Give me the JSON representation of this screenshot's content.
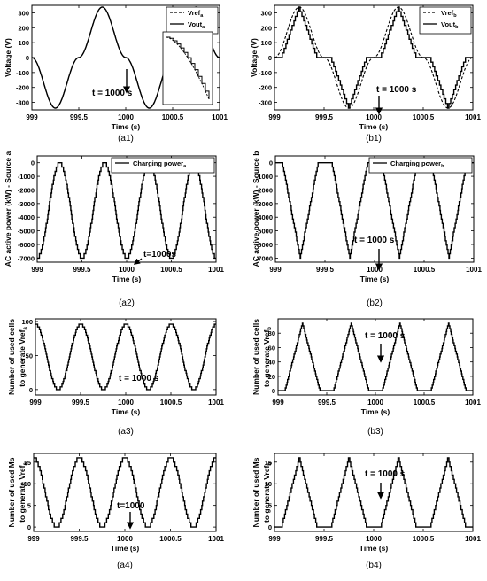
{
  "chart_data": [
    {
      "id": "a1",
      "type": "line",
      "caption": "(a1)",
      "xlabel": "Time (s)",
      "ylabel": "Voltage (V)",
      "xlim": [
        999,
        1001
      ],
      "ylim": [
        -350,
        350
      ],
      "xticks": [
        999,
        999.5,
        1000,
        1000.5,
        1001
      ],
      "xtick_labels": [
        "999",
        "999.5",
        "1000",
        "1000.5",
        "1001"
      ],
      "yticks": [
        -300,
        -200,
        -100,
        0,
        100,
        200,
        300
      ],
      "ytick_labels": [
        "-300",
        "-200",
        "-100",
        "0",
        "100",
        "200",
        "300"
      ],
      "legend_position": "top-right",
      "series": [
        {
          "name": "Vref",
          "sub": "a",
          "style": "dashed",
          "values": [
            {
              "x": 999,
              "y": 0
            },
            {
              "x": 999.25,
              "y": -338
            },
            {
              "x": 999.5,
              "y": 0
            },
            {
              "x": 999.75,
              "y": 338
            },
            {
              "x": 1000,
              "y": 0
            },
            {
              "x": 1000.25,
              "y": -338
            },
            {
              "x": 1000.5,
              "y": 0
            },
            {
              "x": 1000.75,
              "y": 338
            },
            {
              "x": 1001,
              "y": 0
            }
          ]
        },
        {
          "name": "Vout",
          "sub": "a",
          "style": "solid",
          "values": [
            {
              "x": 999,
              "y": 0
            },
            {
              "x": 999.25,
              "y": -338
            },
            {
              "x": 999.5,
              "y": 0
            },
            {
              "x": 999.75,
              "y": 338
            },
            {
              "x": 1000,
              "y": 0
            },
            {
              "x": 1000.25,
              "y": -338
            },
            {
              "x": 1000.5,
              "y": 0
            },
            {
              "x": 1000.75,
              "y": 338
            },
            {
              "x": 1001,
              "y": 0
            }
          ]
        }
      ],
      "annotations": [
        {
          "text": "t = 1000 s",
          "x": 1000
        }
      ],
      "inset": true
    },
    {
      "id": "b1",
      "type": "line",
      "caption": "(b1)",
      "xlabel": "Time (s)",
      "ylabel": "Voltage (V)",
      "xlim": [
        999,
        1001
      ],
      "ylim": [
        -350,
        350
      ],
      "xticks": [
        999,
        999.5,
        1000,
        1000.5,
        1001
      ],
      "xtick_labels": [
        "999",
        "999.5",
        "1000",
        "1000.5",
        "1001"
      ],
      "yticks": [
        -300,
        -200,
        -100,
        0,
        100,
        200,
        300
      ],
      "ytick_labels": [
        "-300",
        "-200",
        "-100",
        "0",
        "100",
        "200",
        "300"
      ],
      "legend_position": "top-right",
      "series": [
        {
          "name": "Vref",
          "sub": "b",
          "style": "dashed",
          "values": [
            {
              "x": 999,
              "y": 0
            },
            {
              "x": 999.25,
              "y": 338
            },
            {
              "x": 999.5,
              "y": 0
            },
            {
              "x": 999.75,
              "y": -338
            },
            {
              "x": 1000,
              "y": 0
            },
            {
              "x": 1000.25,
              "y": 338
            },
            {
              "x": 1000.5,
              "y": 0
            },
            {
              "x": 1000.75,
              "y": -338
            },
            {
              "x": 1001,
              "y": 0
            }
          ]
        },
        {
          "name": "Vout",
          "sub": "b",
          "style": "solid",
          "values": [
            {
              "x": 999,
              "y": 0
            },
            {
              "x": 999.07,
              "y": 0
            },
            {
              "x": 999.25,
              "y": 338
            },
            {
              "x": 999.43,
              "y": 0
            },
            {
              "x": 999.57,
              "y": 0
            },
            {
              "x": 999.75,
              "y": -338
            },
            {
              "x": 999.93,
              "y": 0
            },
            {
              "x": 1000.07,
              "y": 0
            },
            {
              "x": 1000.25,
              "y": 338
            },
            {
              "x": 1000.43,
              "y": 0
            },
            {
              "x": 1000.57,
              "y": 0
            },
            {
              "x": 1000.75,
              "y": -338
            },
            {
              "x": 1000.93,
              "y": 0
            },
            {
              "x": 1001,
              "y": 0
            }
          ]
        }
      ],
      "annotations": [
        {
          "text": "t = 1000 s",
          "x": 1000
        }
      ]
    },
    {
      "id": "a2",
      "type": "line",
      "caption": "(a2)",
      "xlabel": "Time (s)",
      "ylabel": "AC active power (kW) - Source a",
      "xlim": [
        999,
        1001
      ],
      "ylim": [
        -7300,
        500
      ],
      "xticks": [
        999,
        999.5,
        1000,
        1000.5,
        1001
      ],
      "xtick_labels": [
        "999",
        "999.5",
        "1000",
        "1000.5",
        "1001"
      ],
      "yticks": [
        -7000,
        -6000,
        -5000,
        -4000,
        -3000,
        -2000,
        -1000,
        0
      ],
      "ytick_labels": [
        "-7000",
        "-6000",
        "-5000",
        "-4000",
        "-3000",
        "-2000",
        "-1000",
        "0"
      ],
      "legend_position": "top-right",
      "series": [
        {
          "name": "Charging power",
          "sub": "a",
          "style": "solid",
          "values": [
            {
              "x": 999,
              "y": -7000
            },
            {
              "x": 999.25,
              "y": 0
            },
            {
              "x": 999.5,
              "y": -7000
            },
            {
              "x": 999.75,
              "y": 0
            },
            {
              "x": 1000,
              "y": -7000
            },
            {
              "x": 1000.25,
              "y": 0
            },
            {
              "x": 1000.5,
              "y": -7000
            },
            {
              "x": 1000.75,
              "y": 0
            },
            {
              "x": 1001,
              "y": -7000
            }
          ]
        }
      ],
      "annotations": [
        {
          "text": "t=1000s",
          "x": 1000
        }
      ]
    },
    {
      "id": "b2",
      "type": "line",
      "caption": "(b2)",
      "xlabel": "Time (s)",
      "ylabel": "AC active power (kW) - Source b",
      "xlim": [
        999,
        1001
      ],
      "ylim": [
        -7300,
        500
      ],
      "xticks": [
        999,
        999.5,
        1000,
        1000.5,
        1001
      ],
      "xtick_labels": [
        "999",
        "999.5",
        "1000",
        "1000.5",
        "1001"
      ],
      "yticks": [
        -7000,
        -6000,
        -5000,
        -4000,
        -3000,
        -2000,
        -1000,
        0
      ],
      "ytick_labels": [
        "-7000",
        "-6000",
        "-5000",
        "-4000",
        "-3000",
        "-2000",
        "-1000",
        "0"
      ],
      "legend_position": "top-right",
      "series": [
        {
          "name": "Charging power",
          "sub": "b",
          "style": "solid",
          "values": [
            {
              "x": 999,
              "y": 0
            },
            {
              "x": 999.07,
              "y": 0
            },
            {
              "x": 999.25,
              "y": -7000
            },
            {
              "x": 999.43,
              "y": 0
            },
            {
              "x": 999.57,
              "y": 0
            },
            {
              "x": 999.75,
              "y": -7000
            },
            {
              "x": 999.93,
              "y": 0
            },
            {
              "x": 1000.07,
              "y": 0
            },
            {
              "x": 1000.25,
              "y": -7000
            },
            {
              "x": 1000.43,
              "y": 0
            },
            {
              "x": 1000.57,
              "y": 0
            },
            {
              "x": 1000.75,
              "y": -7000
            },
            {
              "x": 1000.93,
              "y": 0
            },
            {
              "x": 1001,
              "y": 0
            }
          ]
        }
      ],
      "annotations": [
        {
          "text": "t = 1000 s",
          "x": 1000
        }
      ]
    },
    {
      "id": "a3",
      "type": "line",
      "caption": "(a3)",
      "xlabel": "Time (s)",
      "ylabel": [
        "Number of used cells",
        "to generate Vref"
      ],
      "ylabel_sub": "a",
      "xlim": [
        999,
        1001
      ],
      "ylim": [
        -8,
        104
      ],
      "xticks": [
        999,
        999.5,
        1000,
        1000.5,
        1001
      ],
      "xtick_labels": [
        "999",
        "999.5",
        "1000",
        "1000.5",
        "1001"
      ],
      "yticks": [
        0,
        50,
        100
      ],
      "ytick_labels": [
        "0",
        "50",
        "100"
      ],
      "series": [
        {
          "name": "",
          "style": "solid",
          "values": [
            {
              "x": 999,
              "y": 96
            },
            {
              "x": 999.25,
              "y": 0
            },
            {
              "x": 999.5,
              "y": 96
            },
            {
              "x": 999.75,
              "y": 0
            },
            {
              "x": 1000,
              "y": 96
            },
            {
              "x": 1000.25,
              "y": 0
            },
            {
              "x": 1000.5,
              "y": 96
            },
            {
              "x": 1000.75,
              "y": 0
            },
            {
              "x": 1001,
              "y": 96
            }
          ]
        }
      ],
      "annotations": [
        {
          "text": "t = 1000 s",
          "x": 1000
        }
      ]
    },
    {
      "id": "b3",
      "type": "line",
      "caption": "(b3)",
      "xlabel": "Time (s)",
      "ylabel": [
        "Number of used cells",
        "to generate Vref"
      ],
      "ylabel_sub": "b",
      "xlim": [
        999,
        1001
      ],
      "ylim": [
        -6,
        100
      ],
      "xticks": [
        999,
        999.5,
        1000,
        1000.5,
        1001
      ],
      "xtick_labels": [
        "999",
        "999.5",
        "1000",
        "1000.5",
        "1001"
      ],
      "yticks": [
        0,
        20,
        40,
        60,
        80
      ],
      "ytick_labels": [
        "0",
        "20",
        "40",
        "60",
        "80"
      ],
      "series": [
        {
          "name": "",
          "style": "solid",
          "values": [
            {
              "x": 999,
              "y": 0
            },
            {
              "x": 999.07,
              "y": 0
            },
            {
              "x": 999.25,
              "y": 94
            },
            {
              "x": 999.43,
              "y": 0
            },
            {
              "x": 999.57,
              "y": 0
            },
            {
              "x": 999.75,
              "y": 94
            },
            {
              "x": 999.93,
              "y": 0
            },
            {
              "x": 1000.07,
              "y": 0
            },
            {
              "x": 1000.25,
              "y": 94
            },
            {
              "x": 1000.43,
              "y": 0
            },
            {
              "x": 1000.57,
              "y": 0
            },
            {
              "x": 1000.75,
              "y": 94
            },
            {
              "x": 1000.93,
              "y": 0
            },
            {
              "x": 1001,
              "y": 0
            }
          ]
        }
      ],
      "annotations": [
        {
          "text": "t = 1000 s",
          "x": 1000
        }
      ]
    },
    {
      "id": "a4",
      "type": "line",
      "caption": "(a4)",
      "xlabel": "Time (s)",
      "ylabel": [
        "Number of used Ms",
        "to generate Vref"
      ],
      "ylabel_sub": "a",
      "xlim": [
        999,
        1001
      ],
      "ylim": [
        -1,
        17
      ],
      "xticks": [
        999,
        999.5,
        1000,
        1000.5,
        1001
      ],
      "xtick_labels": [
        "999",
        "999.5",
        "1000",
        "1000.5",
        "1001"
      ],
      "yticks": [
        0,
        5,
        10,
        15
      ],
      "ytick_labels": [
        "0",
        "5",
        "10",
        "15"
      ],
      "series": [
        {
          "name": "",
          "style": "solid",
          "values": [
            {
              "x": 999,
              "y": 16
            },
            {
              "x": 999.25,
              "y": 0
            },
            {
              "x": 999.5,
              "y": 16
            },
            {
              "x": 999.75,
              "y": 0
            },
            {
              "x": 1000,
              "y": 16
            },
            {
              "x": 1000.25,
              "y": 0
            },
            {
              "x": 1000.5,
              "y": 16
            },
            {
              "x": 1000.75,
              "y": 0
            },
            {
              "x": 1001,
              "y": 16
            }
          ]
        }
      ],
      "annotations": [
        {
          "text": "t=1000",
          "x": 1000
        }
      ]
    },
    {
      "id": "b4",
      "type": "line",
      "caption": "(b4)",
      "xlabel": "Time (s)",
      "ylabel": [
        "Number of used Ms",
        "to generate Vref"
      ],
      "ylabel_sub": "b",
      "xlim": [
        999,
        1001
      ],
      "ylim": [
        -1,
        17
      ],
      "xticks": [
        999,
        999.5,
        1000,
        1000.5,
        1001
      ],
      "xtick_labels": [
        "999",
        "999.5",
        "1000",
        "1000.5",
        "1001"
      ],
      "yticks": [
        0,
        5,
        10,
        15
      ],
      "ytick_labels": [
        "0",
        "5",
        "10",
        "15"
      ],
      "series": [
        {
          "name": "",
          "style": "solid",
          "values": [
            {
              "x": 999,
              "y": 0
            },
            {
              "x": 999.07,
              "y": 0
            },
            {
              "x": 999.25,
              "y": 16
            },
            {
              "x": 999.43,
              "y": 0
            },
            {
              "x": 999.57,
              "y": 0
            },
            {
              "x": 999.75,
              "y": 16
            },
            {
              "x": 999.93,
              "y": 0
            },
            {
              "x": 1000.07,
              "y": 0
            },
            {
              "x": 1000.25,
              "y": 16
            },
            {
              "x": 1000.43,
              "y": 0
            },
            {
              "x": 1000.57,
              "y": 0
            },
            {
              "x": 1000.75,
              "y": 16
            },
            {
              "x": 1000.93,
              "y": 0
            },
            {
              "x": 1001,
              "y": 0
            }
          ]
        }
      ],
      "annotations": [
        {
          "text": "t = 1000 s",
          "x": 1000
        }
      ]
    }
  ]
}
